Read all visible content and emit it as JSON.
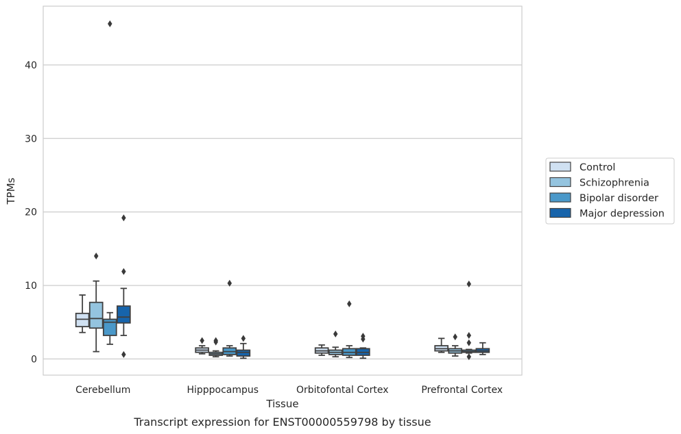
{
  "caption": "Transcript expression for ENST00000559798 by tissue",
  "chart_data": {
    "type": "box",
    "title": "",
    "xlabel": "Tissue",
    "ylabel": "TPMs",
    "ylim": [
      -2.2,
      48
    ],
    "yticks": [
      0,
      10,
      20,
      30,
      40
    ],
    "grid": "horizontal",
    "legend_position": "right",
    "categories": [
      "Cerebellum",
      "Hipppocampus",
      "Orbitofontal Cortex",
      "Prefrontal Cortex"
    ],
    "series": [
      {
        "name": "Control",
        "color": "#d0e1f2",
        "boxes": [
          {
            "whislo": 3.6,
            "q1": 4.4,
            "med": 5.4,
            "q3": 6.2,
            "whishi": 8.7,
            "fliers": []
          },
          {
            "whislo": 0.7,
            "q1": 0.9,
            "med": 1.2,
            "q3": 1.5,
            "whishi": 1.8,
            "fliers": [
              2.5
            ]
          },
          {
            "whislo": 0.5,
            "q1": 0.8,
            "med": 1.1,
            "q3": 1.5,
            "whishi": 1.9,
            "fliers": []
          },
          {
            "whislo": 0.9,
            "q1": 1.1,
            "med": 1.4,
            "q3": 1.8,
            "whishi": 2.8,
            "fliers": []
          }
        ]
      },
      {
        "name": "Schizophrenia",
        "color": "#94c4df",
        "boxes": [
          {
            "whislo": 1.0,
            "q1": 4.2,
            "med": 5.5,
            "q3": 7.7,
            "whishi": 10.6,
            "fliers": [
              14.0
            ]
          },
          {
            "whislo": 0.3,
            "q1": 0.5,
            "med": 0.7,
            "q3": 0.9,
            "whishi": 1.1,
            "fliers": [
              2.3,
              2.5
            ]
          },
          {
            "whislo": 0.3,
            "q1": 0.6,
            "med": 0.9,
            "q3": 1.2,
            "whishi": 1.6,
            "fliers": [
              3.4
            ]
          },
          {
            "whislo": 0.4,
            "q1": 0.8,
            "med": 1.1,
            "q3": 1.4,
            "whishi": 1.8,
            "fliers": [
              3.0
            ]
          }
        ]
      },
      {
        "name": "Bipolar disorder",
        "color": "#4a98c9",
        "boxes": [
          {
            "whislo": 2.0,
            "q1": 3.2,
            "med": 5.0,
            "q3": 5.4,
            "whishi": 6.3,
            "fliers": [
              45.6
            ]
          },
          {
            "whislo": 0.4,
            "q1": 0.6,
            "med": 1.0,
            "q3": 1.5,
            "whishi": 1.8,
            "fliers": [
              10.3
            ]
          },
          {
            "whislo": 0.2,
            "q1": 0.5,
            "med": 0.9,
            "q3": 1.4,
            "whishi": 1.8,
            "fliers": [
              7.5
            ]
          },
          {
            "whislo": 0.8,
            "q1": 0.9,
            "med": 1.0,
            "q3": 1.2,
            "whishi": 1.3,
            "fliers": [
              0.3,
              2.2,
              3.2,
              10.2
            ]
          }
        ]
      },
      {
        "name": "Major depression",
        "color": "#1764ab",
        "boxes": [
          {
            "whislo": 3.2,
            "q1": 4.9,
            "med": 5.7,
            "q3": 7.2,
            "whishi": 9.6,
            "fliers": [
              0.6,
              11.9,
              19.2
            ]
          },
          {
            "whislo": 0.1,
            "q1": 0.4,
            "med": 0.9,
            "q3": 1.2,
            "whishi": 2.1,
            "fliers": [
              2.8
            ]
          },
          {
            "whislo": 0.1,
            "q1": 0.5,
            "med": 0.9,
            "q3": 1.4,
            "whishi": 1.5,
            "fliers": [
              2.7,
              3.1
            ]
          },
          {
            "whislo": 0.6,
            "q1": 0.9,
            "med": 1.1,
            "q3": 1.4,
            "whishi": 2.2,
            "fliers": []
          }
        ]
      }
    ]
  }
}
